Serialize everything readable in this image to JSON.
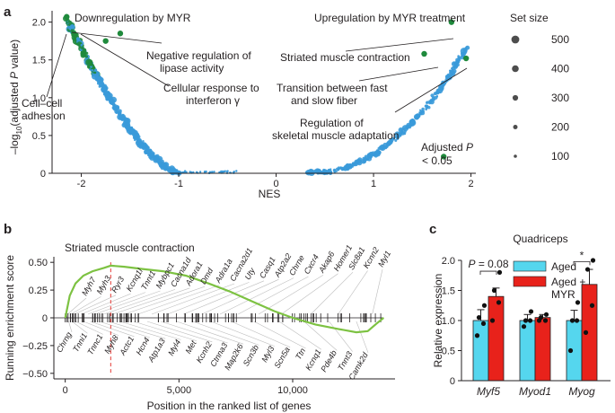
{
  "colors": {
    "nonsig": "#3a9ad9",
    "sig": "#1f8a3c",
    "es_curve": "#7dc242",
    "aged": "#55d6ee",
    "aged_myr": "#e8221b",
    "leading_edge": "#e53935"
  },
  "panels": {
    "a": "a",
    "b": "b",
    "c": "c"
  },
  "chart_data": [
    {
      "type": "scatter",
      "panel": "a",
      "xlabel": "NES",
      "ylabel_prefix": "–log",
      "ylabel_sub": "10",
      "ylabel_open": "(adjusted ",
      "ylabel_p": "P",
      "ylabel_close": " value)",
      "xlim": [
        -2.3,
        2.05
      ],
      "ylim": [
        0,
        2.15
      ],
      "xticks": [
        "-2",
        "-1",
        "0",
        "1",
        "2"
      ],
      "yticks": [
        "0",
        "0.5",
        "1.0",
        "1.5",
        "2.0"
      ],
      "annotations": {
        "down": "Downregulation by MYR",
        "up": "Upregulation by MYR treatment",
        "lipase1": "Negative regulation of",
        "lipase2": "lipase activity",
        "ifn1": "Cellular response to",
        "ifn2": "interferon γ",
        "cell1": "Cell–cell",
        "cell2": "adhesion",
        "striated": "Striated muscle contraction",
        "transition1": "Transition between fast",
        "transition2": "and slow fiber",
        "skeletal1": "Regulation of",
        "skeletal2": "skeletal muscle adaptation",
        "adjp1_pre": "Adjusted ",
        "adjp1_p": "P",
        "adjp2": "< 0.05"
      },
      "size_legend": {
        "title": "Set size",
        "entries": [
          {
            "label": "500",
            "value": 500
          },
          {
            "label": "400",
            "value": 400
          },
          {
            "label": "300",
            "value": 300
          },
          {
            "label": "200",
            "value": 200
          },
          {
            "label": "100",
            "value": 100
          }
        ]
      },
      "highlighted_points": [
        {
          "name": "Striated muscle contraction",
          "nes": 1.8,
          "neglog10p": 2.0,
          "sig": true
        },
        {
          "name": "Negative regulation of lipase activity",
          "nes": -1.6,
          "neglog10p": 1.85,
          "sig": true
        },
        {
          "name": "Cellular response to interferon γ",
          "nes": -1.75,
          "neglog10p": 1.75,
          "sig": true
        },
        {
          "name": "Cell–cell adhesion",
          "nes": -2.15,
          "neglog10p": 2.07,
          "sig": true
        },
        {
          "name": "Transition between fast and slow fiber",
          "nes": 1.52,
          "neglog10p": 1.58,
          "sig": true
        },
        {
          "name": "Regulation of skeletal muscle adaptation",
          "nes": 1.95,
          "neglog10p": 1.52,
          "sig": true
        },
        {
          "name": "",
          "nes": 1.72,
          "neglog10p": 0.22,
          "sig": true
        }
      ]
    },
    {
      "type": "line",
      "panel": "b",
      "title": "Striated muscle contraction",
      "xlabel": "Position in the ranked list of genes",
      "ylabel": "Running enrichment score",
      "xlim": [
        -500,
        14500
      ],
      "ylim": [
        -0.55,
        0.55
      ],
      "xticks": [
        "0",
        "5,000",
        "10,000"
      ],
      "yticks": [
        "−0.50",
        "−0.25",
        "0",
        "0.25",
        "0.50"
      ],
      "leading_edge_position": 2000,
      "curve": [
        {
          "x": 0,
          "y": 0.0
        },
        {
          "x": 200,
          "y": 0.2
        },
        {
          "x": 450,
          "y": 0.31
        },
        {
          "x": 800,
          "y": 0.38
        },
        {
          "x": 1200,
          "y": 0.42
        },
        {
          "x": 1700,
          "y": 0.45
        },
        {
          "x": 2000,
          "y": 0.47
        },
        {
          "x": 2600,
          "y": 0.46
        },
        {
          "x": 3400,
          "y": 0.44
        },
        {
          "x": 4300,
          "y": 0.42
        },
        {
          "x": 5300,
          "y": 0.38
        },
        {
          "x": 6300,
          "y": 0.31
        },
        {
          "x": 7200,
          "y": 0.24
        },
        {
          "x": 8200,
          "y": 0.15
        },
        {
          "x": 9200,
          "y": 0.06
        },
        {
          "x": 10000,
          "y": 0.0
        },
        {
          "x": 11000,
          "y": -0.06
        },
        {
          "x": 12000,
          "y": -0.1
        },
        {
          "x": 12800,
          "y": -0.13
        },
        {
          "x": 13300,
          "y": -0.12
        },
        {
          "x": 13700,
          "y": -0.05
        },
        {
          "x": 14000,
          "y": 0.0
        }
      ],
      "genes_top": [
        {
          "name": "Myh7",
          "pos": 100
        },
        {
          "name": "Myh3",
          "pos": 250
        },
        {
          "name": "Ryr3",
          "pos": 400
        },
        {
          "name": "Kcnq1l",
          "pos": 700
        },
        {
          "name": "Tnnt1",
          "pos": 1000
        },
        {
          "name": "Mybpc1",
          "pos": 1300
        },
        {
          "name": "Cacna1d",
          "pos": 1700
        },
        {
          "name": "Adora1",
          "pos": 2100
        },
        {
          "name": "Dmd",
          "pos": 2600
        },
        {
          "name": "Adra1a",
          "pos": 3200
        },
        {
          "name": "Cacna2d1",
          "pos": 3800
        },
        {
          "name": "Uty",
          "pos": 4500
        },
        {
          "name": "Casq1",
          "pos": 5200
        },
        {
          "name": "Atp2a2",
          "pos": 6000
        },
        {
          "name": "Chrne",
          "pos": 6800
        },
        {
          "name": "Cxcr4",
          "pos": 7600
        },
        {
          "name": "Akap6",
          "pos": 8500
        },
        {
          "name": "Homer1",
          "pos": 9500
        },
        {
          "name": "Slc8a1",
          "pos": 10800
        },
        {
          "name": "Kcnn2",
          "pos": 12000
        },
        {
          "name": "Myl1",
          "pos": 13500
        }
      ],
      "genes_bottom": [
        {
          "name": "Chrng",
          "pos": 150
        },
        {
          "name": "Tnni1",
          "pos": 300
        },
        {
          "name": "Tnnc1",
          "pos": 450
        },
        {
          "name": "Myh8",
          "pos": 800
        },
        {
          "name": "Actc1",
          "pos": 1100
        },
        {
          "name": "Hcn4",
          "pos": 1500
        },
        {
          "name": "Atp1a3",
          "pos": 1900
        },
        {
          "name": "Myl4",
          "pos": 2400
        },
        {
          "name": "Met",
          "pos": 3000
        },
        {
          "name": "Kcnh2",
          "pos": 3600
        },
        {
          "name": "Ctnna3",
          "pos": 4200
        },
        {
          "name": "Map2k6",
          "pos": 4900
        },
        {
          "name": "Scn3b",
          "pos": 5600
        },
        {
          "name": "Myl3",
          "pos": 6400
        },
        {
          "name": "Scn5a",
          "pos": 7300
        },
        {
          "name": "Ttn",
          "pos": 8300
        },
        {
          "name": "Kcnq1",
          "pos": 9400
        },
        {
          "name": "Pde4b",
          "pos": 10500
        },
        {
          "name": "Tnnt3",
          "pos": 11600
        },
        {
          "name": "Camk2d",
          "pos": 12800
        }
      ]
    },
    {
      "type": "bar",
      "panel": "c",
      "title": "Quadriceps",
      "ylabel": "Relative expression",
      "ylim": [
        0,
        2.0
      ],
      "yticks": [
        "0",
        "0.5",
        "1.0",
        "1.5",
        "2.0"
      ],
      "categories": [
        "Myf5",
        "Myod1",
        "Myog"
      ],
      "series": [
        {
          "name": "Aged",
          "values": [
            1.0,
            1.0,
            1.0
          ],
          "errors": [
            0.18,
            0.1,
            0.17
          ],
          "points": [
            [
              0.75,
              0.95,
              1.05,
              1.25
            ],
            [
              0.9,
              1.0,
              1.0,
              1.15
            ],
            [
              0.5,
              1.0,
              1.0,
              1.3
            ]
          ]
        },
        {
          "name": "Aged + MYR",
          "values": [
            1.4,
            1.05,
            1.6
          ],
          "errors": [
            0.14,
            0.05,
            0.25
          ],
          "points": [
            [
              1.0,
              1.3,
              1.5,
              1.8
            ],
            [
              1.0,
              1.0,
              1.05,
              1.1
            ],
            [
              0.8,
              1.25,
              1.85,
              2.0
            ]
          ]
        }
      ],
      "significance": [
        {
          "category": "Myf5",
          "label_p": "P",
          "label_rest": " = 0.08"
        },
        {
          "category": "Myog",
          "label": "*"
        }
      ]
    }
  ]
}
